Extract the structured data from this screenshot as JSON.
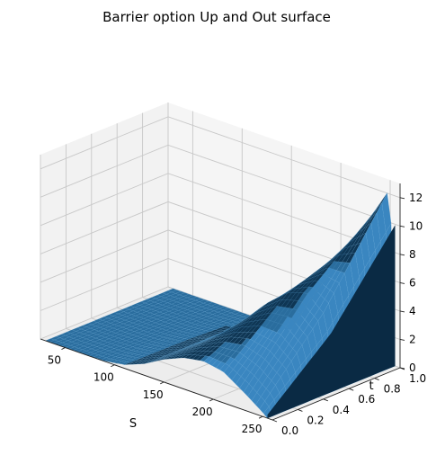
{
  "chart_data": {
    "type": "surface",
    "title": "Barrier option Up and Out surface",
    "xlabel": "S",
    "ylabel": "t",
    "zlabel": "",
    "xlim": [
      25,
      260
    ],
    "ylim": [
      0,
      1
    ],
    "zlim": [
      0,
      13
    ],
    "x_ticks": [
      50,
      100,
      150,
      200,
      250
    ],
    "y_ticks": [
      0.0,
      0.2,
      0.4,
      0.6,
      0.8,
      1.0
    ],
    "y_tick_labels": [
      "0.0",
      "0.2",
      "0.4",
      "0.6",
      "0.8",
      "1.0"
    ],
    "z_ticks": [
      0,
      2,
      4,
      6,
      8,
      10,
      12
    ],
    "grid": true,
    "surface_color": "#1f77b4",
    "edge_color": "#5fa8dc",
    "profiles": [
      {
        "t": 0.0,
        "S": [
          30,
          50,
          70,
          90,
          110,
          130,
          150,
          170,
          190,
          210,
          230,
          250,
          255
        ],
        "V": [
          0,
          0,
          0,
          0.03,
          0.25,
          0.8,
          1.6,
          2.2,
          2.45,
          2.2,
          1.3,
          0.3,
          0
        ]
      },
      {
        "t": 0.5,
        "S": [
          30,
          50,
          70,
          90,
          110,
          130,
          150,
          170,
          190,
          210,
          230,
          250,
          255
        ],
        "V": [
          0,
          0,
          0,
          0.02,
          0.2,
          0.75,
          1.8,
          3.2,
          4.7,
          5.9,
          6.4,
          5.2,
          0
        ]
      },
      {
        "t": 1.0,
        "S": [
          30,
          50,
          70,
          90,
          110,
          130,
          150,
          170,
          190,
          210,
          230,
          250,
          255
        ],
        "V": [
          0,
          0,
          0,
          0,
          0,
          0,
          0,
          2.5,
          4.9,
          7.4,
          9.9,
          12.4,
          0
        ]
      }
    ]
  }
}
